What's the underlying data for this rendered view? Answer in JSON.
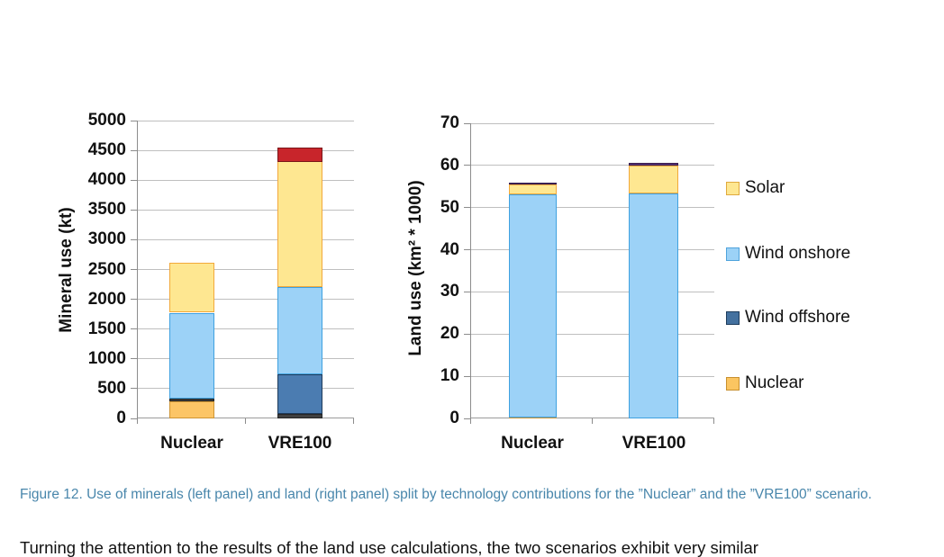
{
  "figure": {
    "caption": "Figure 12. Use of minerals (left panel) and land (right panel) split by technology contributions for the ”Nuclear” and the ”VRE100” scenario."
  },
  "body_text": "Turning the attention to the results of the land use calculations, the two scenarios exhibit very similar",
  "colors": {
    "solar": "#fee791",
    "solar_border": "#f2a93b",
    "wind_onshore": "#9cd2f7",
    "wind_onshore_border": "#3fa1e0",
    "wind_offshore": "#4b7cb1",
    "wind_offshore_border": "#1e3c5c",
    "nuclear": "#fcc566",
    "nuclear_border": "#ce9534",
    "unlabeled_dark": "#404040",
    "unlabeled_dark_border": "#262626",
    "unlabeled_red": "#c8252b",
    "unlabeled_red_border": "#7a1518",
    "unlabeled_purple": "#5a3578",
    "unlabeled_purple_border": "#3a1f50",
    "gridline": "#bfbfbf",
    "axis": "#8c8c8c",
    "caption_text": "#4886ab"
  },
  "legend": {
    "items": [
      {
        "label": "Solar",
        "fill": "#fee791",
        "border": "#e0a93e"
      },
      {
        "label": "Wind onshore",
        "fill": "#9cd2f7",
        "border": "#4fa3dc"
      },
      {
        "label": "Wind offshore",
        "fill": "#44719f",
        "border": "#1e3c5c"
      },
      {
        "label": "Nuclear",
        "fill": "#fbc561",
        "border": "#c8902f"
      }
    ]
  },
  "chart_data": [
    {
      "type": "bar",
      "stacked": true,
      "title": "",
      "ylabel": "Mineral use (kt)",
      "xlabel": "",
      "categories": [
        "Nuclear",
        "VRE100"
      ],
      "ylim": [
        0,
        5000
      ],
      "ytick_step": 500,
      "grid": true,
      "legend_position": "right",
      "series": [
        {
          "name": "Nuclear",
          "fill": "#fcc566",
          "border": "#ce9534",
          "values": [
            290,
            0
          ]
        },
        {
          "name": "Unlabeled dark segment",
          "fill": "#404040",
          "border": "#262626",
          "values": [
            45,
            70
          ]
        },
        {
          "name": "Wind offshore",
          "fill": "#4b7cb1",
          "border": "#1e3c5c",
          "values": [
            0,
            670
          ]
        },
        {
          "name": "Wind onshore",
          "fill": "#9cd2f7",
          "border": "#3fa1e0",
          "values": [
            1440,
            1460
          ]
        },
        {
          "name": "Solar",
          "fill": "#fee791",
          "border": "#f2a93b",
          "values": [
            825,
            2110
          ]
        },
        {
          "name": "Unlabeled red segment",
          "fill": "#c8252b",
          "border": "#7a1518",
          "values": [
            0,
            240
          ]
        }
      ],
      "totals": [
        2600,
        4550
      ]
    },
    {
      "type": "bar",
      "stacked": true,
      "title": "",
      "ylabel": "Land use (km² * 1000)",
      "xlabel": "",
      "categories": [
        "Nuclear",
        "VRE100"
      ],
      "ylim": [
        0,
        70
      ],
      "ytick_step": 10,
      "grid": true,
      "legend_position": "right",
      "series": [
        {
          "name": "Nuclear",
          "fill": "#fcc566",
          "border": "#ce9534",
          "values": [
            0.3,
            0
          ]
        },
        {
          "name": "Wind offshore",
          "fill": "#4b7cb1",
          "border": "#1e3c5c",
          "values": [
            0,
            0
          ]
        },
        {
          "name": "Wind onshore",
          "fill": "#9cd2f7",
          "border": "#3fa1e0",
          "values": [
            52.9,
            53.3
          ]
        },
        {
          "name": "Solar",
          "fill": "#fee791",
          "border": "#f2a93b",
          "values": [
            2.3,
            6.6
          ]
        },
        {
          "name": "Unlabeled purple segment",
          "fill": "#5a3578",
          "border": "#3a1f50",
          "values": [
            0.4,
            0.6
          ]
        }
      ],
      "totals": [
        55.9,
        60.5
      ]
    }
  ]
}
